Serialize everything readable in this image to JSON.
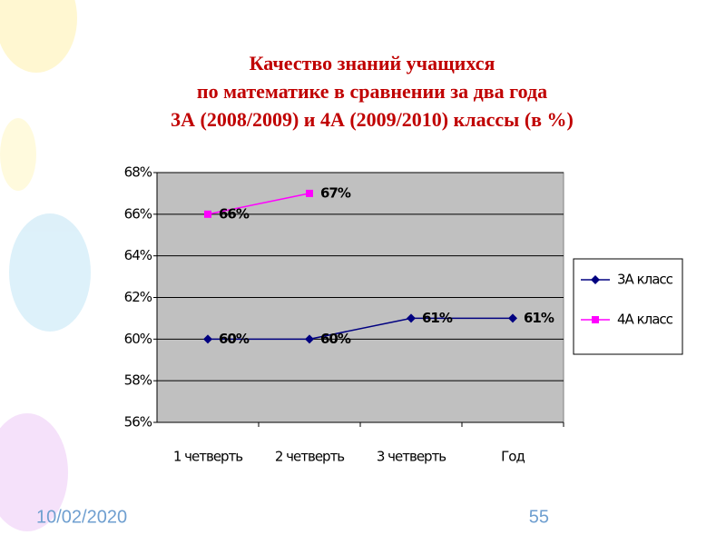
{
  "chart_data": {
    "type": "line",
    "title": [
      "Качество знаний учащихся",
      "по математике  в сравнении за два года",
      "3А (2008/2009)  и 4А (2009/2010) классы (в %)"
    ],
    "categories": [
      "1 четверть",
      "2 четверть",
      "3 четверть",
      "Год"
    ],
    "series": [
      {
        "name": "3А класс",
        "color": "#000080",
        "marker": "diamond",
        "values": [
          60,
          60,
          61,
          61
        ],
        "value_labels": [
          "60%",
          "60%",
          "61%",
          "61%"
        ]
      },
      {
        "name": "4А класс",
        "color": "#ff00ff",
        "marker": "square",
        "values": [
          66,
          67,
          null,
          null
        ],
        "value_labels": [
          "66%",
          "67%",
          null,
          null
        ]
      }
    ],
    "ylim": [
      56,
      68
    ],
    "yticks": [
      {
        "value": 56,
        "label": "56%"
      },
      {
        "value": 58,
        "label": "58%"
      },
      {
        "value": 60,
        "label": "60%"
      },
      {
        "value": 62,
        "label": "62%"
      },
      {
        "value": 64,
        "label": "64%"
      },
      {
        "value": 66,
        "label": "66%"
      },
      {
        "value": 68,
        "label": "68%"
      }
    ],
    "grid": true,
    "legend": "right",
    "plot_background": "#c0c0c0"
  },
  "footer": {
    "date": "10/02/2020",
    "page": "55"
  }
}
